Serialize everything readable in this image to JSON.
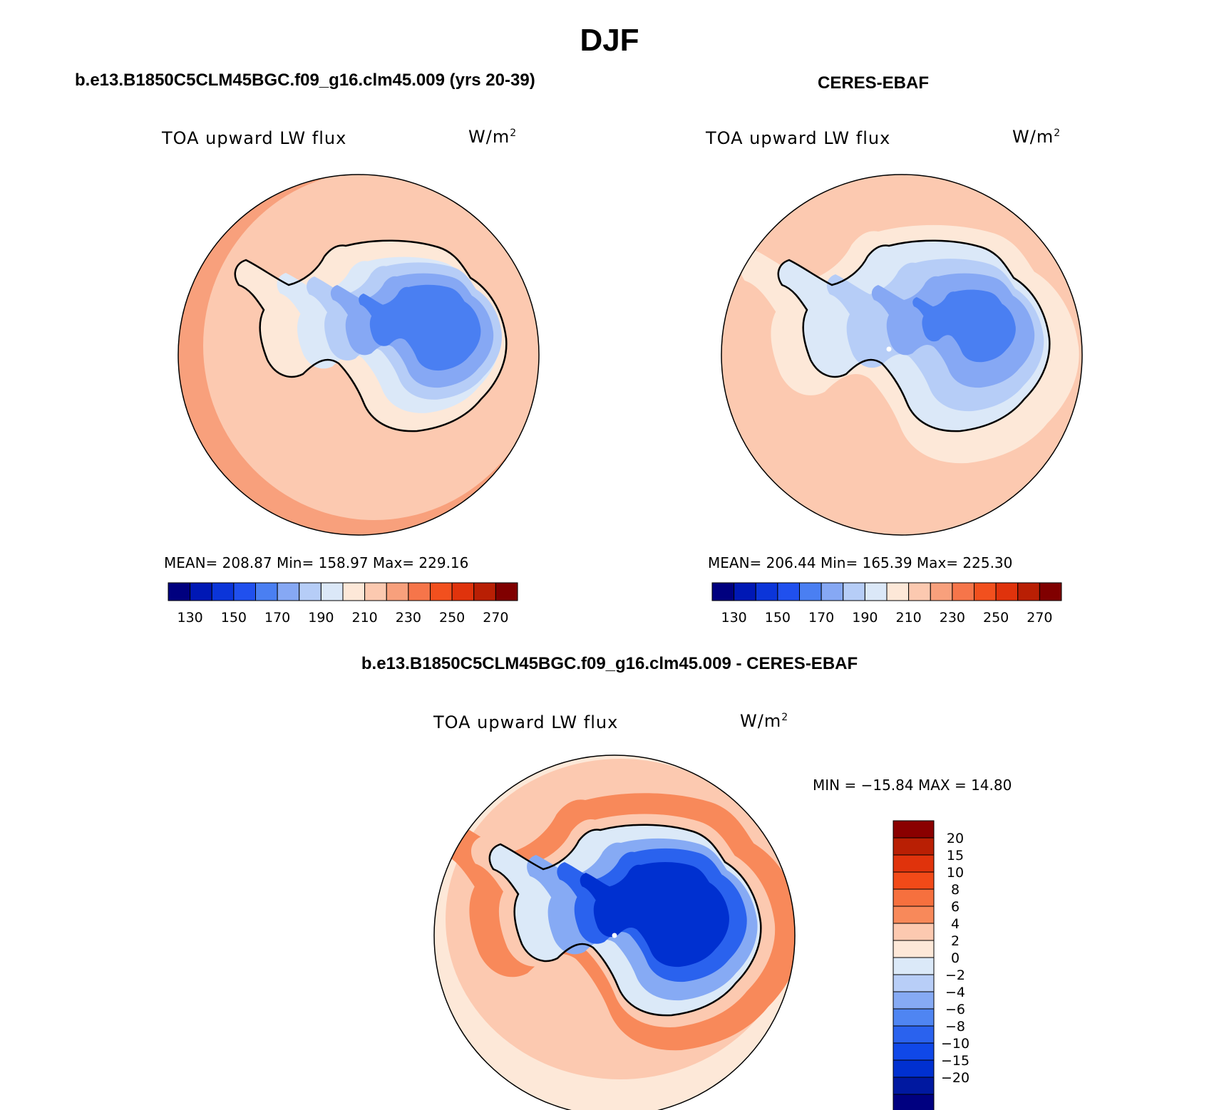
{
  "title": "DJF",
  "panels": [
    {
      "id": "model",
      "title": "b.e13.B1850C5CLM45BGC.f09_g16.clm45.009 (yrs 20-39)",
      "variable": "TOA upward LW flux",
      "units": "W/m",
      "units_sup": "2",
      "stats": "MEAN= 208.87   Min= 158.97   Max= 229.16",
      "mean": 208.87,
      "min": 158.97,
      "max": 229.16
    },
    {
      "id": "obs",
      "title": "CERES-EBAF",
      "variable": "TOA upward LW flux",
      "units": "W/m",
      "units_sup": "2",
      "stats": "MEAN= 206.44   Min= 165.39   Max= 225.30",
      "mean": 206.44,
      "min": 165.39,
      "max": 225.3
    },
    {
      "id": "diff",
      "title": "b.e13.B1850C5CLM45BGC.f09_g16.clm45.009 - CERES-EBAF",
      "variable": "TOA upward LW flux",
      "units": "W/m",
      "units_sup": "2",
      "stats": "MIN = −15.84 MAX =  14.80",
      "min": -15.84,
      "max": 14.8
    }
  ],
  "colorbar_abs": {
    "colors": [
      "#00007f",
      "#0018b5",
      "#0b35d9",
      "#2050ee",
      "#4a7ff2",
      "#86a8f4",
      "#b6cdf7",
      "#dbe8f8",
      "#fde8d8",
      "#fcc9b0",
      "#f8a07c",
      "#f6754a",
      "#f2501e",
      "#e0330c",
      "#b91f04",
      "#800000"
    ],
    "tick_labels": [
      "130",
      "150",
      "170",
      "190",
      "210",
      "230",
      "250",
      "270"
    ]
  },
  "colorbar_diff": {
    "colors": [
      "#000080",
      "#0018a0",
      "#0030d0",
      "#1048e8",
      "#2a62ee",
      "#4f85f2",
      "#86aaf4",
      "#b8cef7",
      "#dbe9f8",
      "#fde8d8",
      "#fcc9b0",
      "#f8895a",
      "#f6703e",
      "#f24a18",
      "#e0330c",
      "#b91f04",
      "#8a0000"
    ],
    "tick_labels": [
      "20",
      "15",
      "10",
      "8",
      "6",
      "4",
      "2",
      "0",
      "−2",
      "−4",
      "−6",
      "−8",
      "−10",
      "−15",
      "−20"
    ]
  },
  "legend_colors": {
    "ocean_model": "#fcc9b0",
    "ocean_edge_model": "#f8a07c",
    "ocean_obs": "#fcc9b0",
    "diff_ocean": "#f6754a"
  }
}
